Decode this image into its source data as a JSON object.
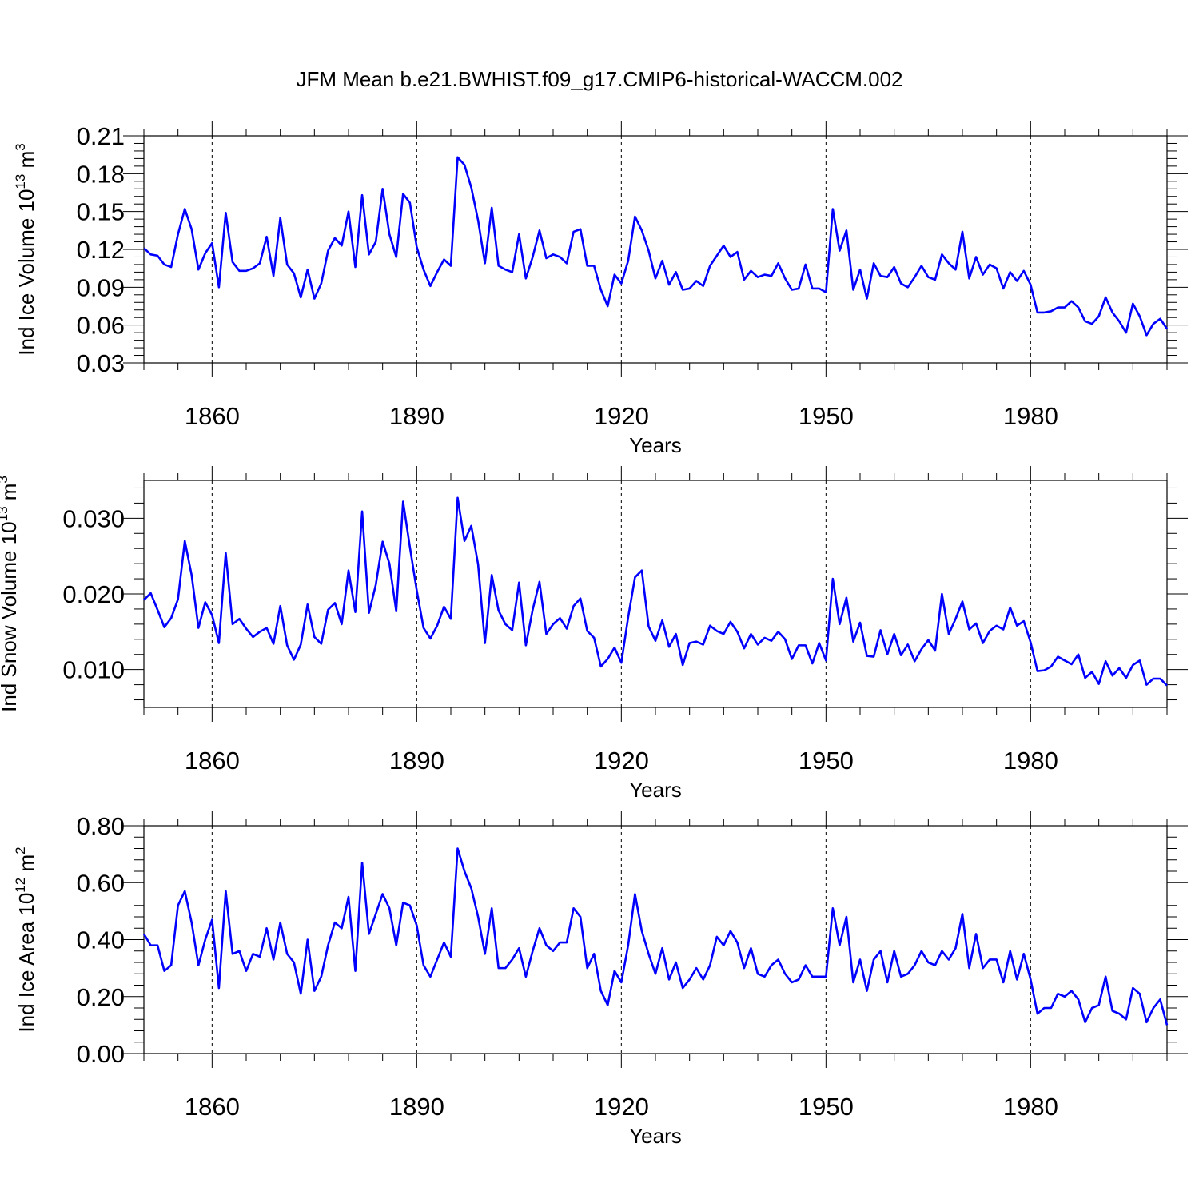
{
  "page_title": "JFM Mean b.e21.BWHIST.f09_g17.CMIP6-historical-WACCM.002",
  "colors": {
    "line": "#0000ff",
    "axis": "#000000",
    "grid": "#000000"
  },
  "chart_data": [
    {
      "type": "line",
      "title": "JFM Mean b.e21.BWHIST.f09_g17.CMIP6-historical-WACCM.002",
      "ylabel": "Ind Ice Volume 10",
      "ylabel_exp": "13",
      "ylabel_unit": " m",
      "ylabel_unit_exp": "3",
      "xlabel": "Years",
      "xlim": [
        1850,
        2000
      ],
      "ylim": [
        0.03,
        0.21
      ],
      "yticks": [
        0.03,
        0.06,
        0.09,
        0.12,
        0.15,
        0.18,
        0.21
      ],
      "ytick_labels": [
        "0.03",
        "0.06",
        "0.09",
        "0.12",
        "0.15",
        "0.18",
        "0.21"
      ],
      "xticks": [
        1860,
        1890,
        1920,
        1950,
        1980
      ],
      "xtick_labels": [
        "1860",
        "1890",
        "1920",
        "1950",
        "1980"
      ],
      "x_start": 1850,
      "series": [
        {
          "name": "Ind Ice Volume",
          "values": [
            0.121,
            0.116,
            0.115,
            0.108,
            0.106,
            0.132,
            0.152,
            0.136,
            0.104,
            0.117,
            0.125,
            0.09,
            0.149,
            0.11,
            0.103,
            0.103,
            0.105,
            0.109,
            0.13,
            0.099,
            0.145,
            0.108,
            0.101,
            0.082,
            0.104,
            0.081,
            0.093,
            0.119,
            0.129,
            0.123,
            0.15,
            0.106,
            0.163,
            0.116,
            0.126,
            0.168,
            0.132,
            0.114,
            0.164,
            0.157,
            0.122,
            0.104,
            0.091,
            0.102,
            0.112,
            0.107,
            0.193,
            0.187,
            0.169,
            0.143,
            0.109,
            0.153,
            0.107,
            0.104,
            0.102,
            0.132,
            0.097,
            0.114,
            0.135,
            0.113,
            0.116,
            0.114,
            0.109,
            0.134,
            0.136,
            0.107,
            0.107,
            0.088,
            0.075,
            0.1,
            0.093,
            0.111,
            0.146,
            0.135,
            0.119,
            0.097,
            0.111,
            0.092,
            0.102,
            0.088,
            0.089,
            0.095,
            0.091,
            0.107,
            0.115,
            0.123,
            0.114,
            0.118,
            0.096,
            0.103,
            0.098,
            0.1,
            0.099,
            0.109,
            0.097,
            0.088,
            0.089,
            0.108,
            0.089,
            0.089,
            0.086,
            0.152,
            0.119,
            0.135,
            0.088,
            0.104,
            0.081,
            0.109,
            0.099,
            0.098,
            0.106,
            0.093,
            0.09,
            0.098,
            0.107,
            0.098,
            0.096,
            0.116,
            0.109,
            0.104,
            0.134,
            0.097,
            0.114,
            0.1,
            0.108,
            0.105,
            0.089,
            0.102,
            0.095,
            0.103,
            0.092,
            0.07,
            0.07,
            0.071,
            0.074,
            0.074,
            0.079,
            0.074,
            0.063,
            0.061,
            0.067,
            0.082,
            0.07,
            0.063,
            0.054,
            0.077,
            0.067,
            0.052,
            0.061,
            0.065,
            0.057
          ]
        }
      ]
    },
    {
      "type": "line",
      "ylabel": "Ind Snow Volume 10",
      "ylabel_exp": "13",
      "ylabel_unit": " m",
      "ylabel_unit_exp": "3",
      "xlabel": "Years",
      "xlim": [
        1850,
        2000
      ],
      "ylim": [
        0.005,
        0.035
      ],
      "yticks": [
        0.01,
        0.02,
        0.03
      ],
      "ytick_labels": [
        "0.010",
        "0.020",
        "0.030"
      ],
      "xticks": [
        1860,
        1890,
        1920,
        1950,
        1980
      ],
      "xtick_labels": [
        "1860",
        "1890",
        "1920",
        "1950",
        "1980"
      ],
      "x_start": 1850,
      "series": [
        {
          "name": "Ind Snow Volume",
          "values": [
            0.0192,
            0.0201,
            0.0179,
            0.0156,
            0.0168,
            0.0193,
            0.027,
            0.0225,
            0.0155,
            0.0189,
            0.0172,
            0.0135,
            0.0254,
            0.016,
            0.0167,
            0.0154,
            0.0143,
            0.015,
            0.0155,
            0.0134,
            0.0184,
            0.0132,
            0.0113,
            0.0133,
            0.0186,
            0.0143,
            0.0134,
            0.0179,
            0.0188,
            0.016,
            0.0231,
            0.0176,
            0.0309,
            0.0175,
            0.0212,
            0.0269,
            0.024,
            0.0177,
            0.0322,
            0.0262,
            0.0205,
            0.0155,
            0.0141,
            0.0158,
            0.0183,
            0.0167,
            0.0327,
            0.027,
            0.029,
            0.0239,
            0.0135,
            0.0225,
            0.0178,
            0.016,
            0.0152,
            0.0215,
            0.0132,
            0.0179,
            0.0216,
            0.0147,
            0.016,
            0.0168,
            0.0154,
            0.0184,
            0.0194,
            0.0151,
            0.0142,
            0.0104,
            0.0114,
            0.0129,
            0.0109,
            0.0169,
            0.0222,
            0.0231,
            0.0157,
            0.0138,
            0.0165,
            0.013,
            0.0147,
            0.0106,
            0.0135,
            0.0137,
            0.0133,
            0.0158,
            0.0151,
            0.0147,
            0.0163,
            0.015,
            0.0128,
            0.0147,
            0.0133,
            0.0142,
            0.0138,
            0.015,
            0.014,
            0.0114,
            0.0132,
            0.0132,
            0.0108,
            0.0135,
            0.0112,
            0.022,
            0.016,
            0.0195,
            0.0137,
            0.0162,
            0.0118,
            0.0117,
            0.0152,
            0.012,
            0.0147,
            0.0119,
            0.0133,
            0.0111,
            0.0127,
            0.0139,
            0.0125,
            0.02,
            0.0147,
            0.0167,
            0.019,
            0.0153,
            0.0161,
            0.0135,
            0.0151,
            0.0158,
            0.0153,
            0.0182,
            0.0158,
            0.0164,
            0.0136,
            0.0098,
            0.0099,
            0.0104,
            0.0117,
            0.0112,
            0.0107,
            0.012,
            0.0089,
            0.0097,
            0.0081,
            0.0111,
            0.0092,
            0.0102,
            0.0089,
            0.0106,
            0.0112,
            0.008,
            0.0088,
            0.0088,
            0.0079
          ]
        }
      ]
    },
    {
      "type": "line",
      "ylabel": "Ind Ice Area 10",
      "ylabel_exp": "12",
      "ylabel_unit": " m",
      "ylabel_unit_exp": "2",
      "xlabel": "Years",
      "xlim": [
        1850,
        2000
      ],
      "ylim": [
        0.0,
        0.8
      ],
      "yticks": [
        0.0,
        0.2,
        0.4,
        0.6,
        0.8
      ],
      "ytick_labels": [
        "0.00",
        "0.20",
        "0.40",
        "0.60",
        "0.80"
      ],
      "xticks": [
        1860,
        1890,
        1920,
        1950,
        1980
      ],
      "xtick_labels": [
        "1860",
        "1890",
        "1920",
        "1950",
        "1980"
      ],
      "x_start": 1850,
      "series": [
        {
          "name": "Ind Ice Area",
          "values": [
            0.42,
            0.38,
            0.38,
            0.29,
            0.31,
            0.52,
            0.57,
            0.46,
            0.31,
            0.4,
            0.47,
            0.23,
            0.57,
            0.35,
            0.36,
            0.29,
            0.35,
            0.34,
            0.44,
            0.33,
            0.46,
            0.35,
            0.32,
            0.21,
            0.4,
            0.22,
            0.27,
            0.38,
            0.46,
            0.44,
            0.55,
            0.29,
            0.67,
            0.42,
            0.49,
            0.56,
            0.51,
            0.38,
            0.53,
            0.52,
            0.45,
            0.31,
            0.27,
            0.33,
            0.39,
            0.34,
            0.72,
            0.64,
            0.58,
            0.48,
            0.35,
            0.51,
            0.3,
            0.3,
            0.33,
            0.37,
            0.27,
            0.36,
            0.44,
            0.38,
            0.36,
            0.39,
            0.39,
            0.51,
            0.48,
            0.3,
            0.35,
            0.22,
            0.17,
            0.29,
            0.25,
            0.38,
            0.56,
            0.43,
            0.35,
            0.28,
            0.37,
            0.26,
            0.32,
            0.23,
            0.26,
            0.3,
            0.26,
            0.31,
            0.41,
            0.38,
            0.43,
            0.39,
            0.3,
            0.37,
            0.28,
            0.27,
            0.31,
            0.33,
            0.28,
            0.25,
            0.26,
            0.31,
            0.27,
            0.27,
            0.27,
            0.51,
            0.38,
            0.48,
            0.25,
            0.33,
            0.22,
            0.33,
            0.36,
            0.25,
            0.36,
            0.27,
            0.28,
            0.31,
            0.36,
            0.32,
            0.31,
            0.36,
            0.33,
            0.37,
            0.49,
            0.3,
            0.42,
            0.3,
            0.33,
            0.33,
            0.25,
            0.36,
            0.26,
            0.35,
            0.26,
            0.14,
            0.16,
            0.16,
            0.21,
            0.2,
            0.22,
            0.19,
            0.11,
            0.16,
            0.17,
            0.27,
            0.15,
            0.14,
            0.12,
            0.23,
            0.21,
            0.11,
            0.16,
            0.19,
            0.1
          ]
        }
      ]
    }
  ]
}
